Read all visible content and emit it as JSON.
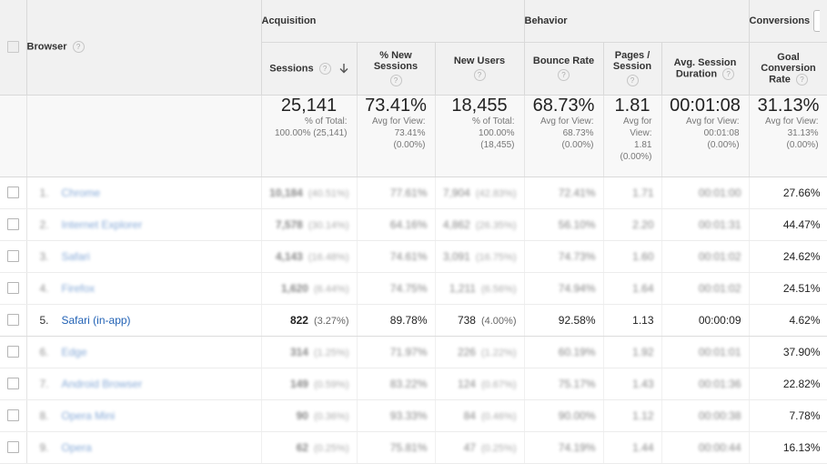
{
  "header": {
    "browser_label": "Browser",
    "groups": {
      "acquisition": "Acquisition",
      "behavior": "Behavior",
      "conversions": "Conversions"
    },
    "help_glyph": "?",
    "columns": {
      "sessions": "Sessions",
      "pct_new_line1": "% New",
      "pct_new_line2": "Sessions",
      "new_users": "New Users",
      "bounce_rate": "Bounce Rate",
      "pages_line1": "Pages /",
      "pages_line2": "Session",
      "duration_line1": "Avg. Session",
      "duration_line2": "Duration",
      "goal_line1": "Goal",
      "goal_line2": "Conversion",
      "goal_line3": "Rate"
    }
  },
  "totals": {
    "sessions": {
      "value": "25,141",
      "sub1": "% of Total:",
      "sub2": "100.00% (25,141)"
    },
    "pct_new": {
      "value": "73.41%",
      "sub1": "Avg for View:",
      "sub2": "73.41%",
      "sub3": "(0.00%)"
    },
    "new_users": {
      "value": "18,455",
      "sub1": "% of Total:",
      "sub2": "100.00%",
      "sub3": "(18,455)"
    },
    "bounce_rate": {
      "value": "68.73%",
      "sub1": "Avg for View:",
      "sub2": "68.73%",
      "sub3": "(0.00%)"
    },
    "pages": {
      "value": "1.81",
      "sub1": "Avg for",
      "sub2": "View:",
      "sub3": "1.81",
      "sub4": "(0.00%)"
    },
    "duration": {
      "value": "00:01:08",
      "sub1": "Avg for View:",
      "sub2": "00:01:08",
      "sub3": "(0.00%)"
    },
    "goal": {
      "value": "31.13%",
      "sub1": "Avg for View:",
      "sub2": "31.13%",
      "sub3": "(0.00%)"
    }
  },
  "rows": [
    {
      "rank": "1.",
      "browser": "Chrome",
      "sessions": "10,184",
      "sessions_pct": "(40.51%)",
      "pct_new": "77.61%",
      "new_users": "7,904",
      "new_users_pct": "(42.83%)",
      "bounce": "72.41%",
      "pages": "1.71",
      "duration": "00:01:00",
      "goal": "27.66%"
    },
    {
      "rank": "2.",
      "browser": "Internet Explorer",
      "sessions": "7,578",
      "sessions_pct": "(30.14%)",
      "pct_new": "64.16%",
      "new_users": "4,862",
      "new_users_pct": "(26.35%)",
      "bounce": "56.10%",
      "pages": "2.20",
      "duration": "00:01:31",
      "goal": "44.47%"
    },
    {
      "rank": "3.",
      "browser": "Safari",
      "sessions": "4,143",
      "sessions_pct": "(16.48%)",
      "pct_new": "74.61%",
      "new_users": "3,091",
      "new_users_pct": "(16.75%)",
      "bounce": "74.73%",
      "pages": "1.60",
      "duration": "00:01:02",
      "goal": "24.62%"
    },
    {
      "rank": "4.",
      "browser": "Firefox",
      "sessions": "1,620",
      "sessions_pct": "(6.44%)",
      "pct_new": "74.75%",
      "new_users": "1,211",
      "new_users_pct": "(6.56%)",
      "bounce": "74.94%",
      "pages": "1.64",
      "duration": "00:01:02",
      "goal": "24.51%"
    },
    {
      "rank": "5.",
      "browser": "Safari (in-app)",
      "sessions": "822",
      "sessions_pct": "(3.27%)",
      "pct_new": "89.78%",
      "new_users": "738",
      "new_users_pct": "(4.00%)",
      "bounce": "92.58%",
      "pages": "1.13",
      "duration": "00:00:09",
      "goal": "4.62%"
    },
    {
      "rank": "6.",
      "browser": "Edge",
      "sessions": "314",
      "sessions_pct": "(1.25%)",
      "pct_new": "71.97%",
      "new_users": "226",
      "new_users_pct": "(1.22%)",
      "bounce": "60.19%",
      "pages": "1.92",
      "duration": "00:01:01",
      "goal": "37.90%"
    },
    {
      "rank": "7.",
      "browser": "Android Browser",
      "sessions": "149",
      "sessions_pct": "(0.59%)",
      "pct_new": "83.22%",
      "new_users": "124",
      "new_users_pct": "(0.67%)",
      "bounce": "75.17%",
      "pages": "1.43",
      "duration": "00:01:36",
      "goal": "22.82%"
    },
    {
      "rank": "8.",
      "browser": "Opera Mini",
      "sessions": "90",
      "sessions_pct": "(0.36%)",
      "pct_new": "93.33%",
      "new_users": "84",
      "new_users_pct": "(0.46%)",
      "bounce": "90.00%",
      "pages": "1.12",
      "duration": "00:00:38",
      "goal": "7.78%"
    },
    {
      "rank": "9.",
      "browser": "Opera",
      "sessions": "62",
      "sessions_pct": "(0.25%)",
      "pct_new": "75.81%",
      "new_users": "47",
      "new_users_pct": "(0.25%)",
      "bounce": "74.19%",
      "pages": "1.44",
      "duration": "00:00:44",
      "goal": "16.13%"
    }
  ],
  "highlighted_row": "5.",
  "icons": {
    "sort": "arrow-down-icon",
    "help": "help-icon",
    "checkbox": "checkbox-icon"
  },
  "colors": {
    "link": "#2262b5",
    "header_bg": "#f1f1f1",
    "border": "#d9d9d9"
  }
}
